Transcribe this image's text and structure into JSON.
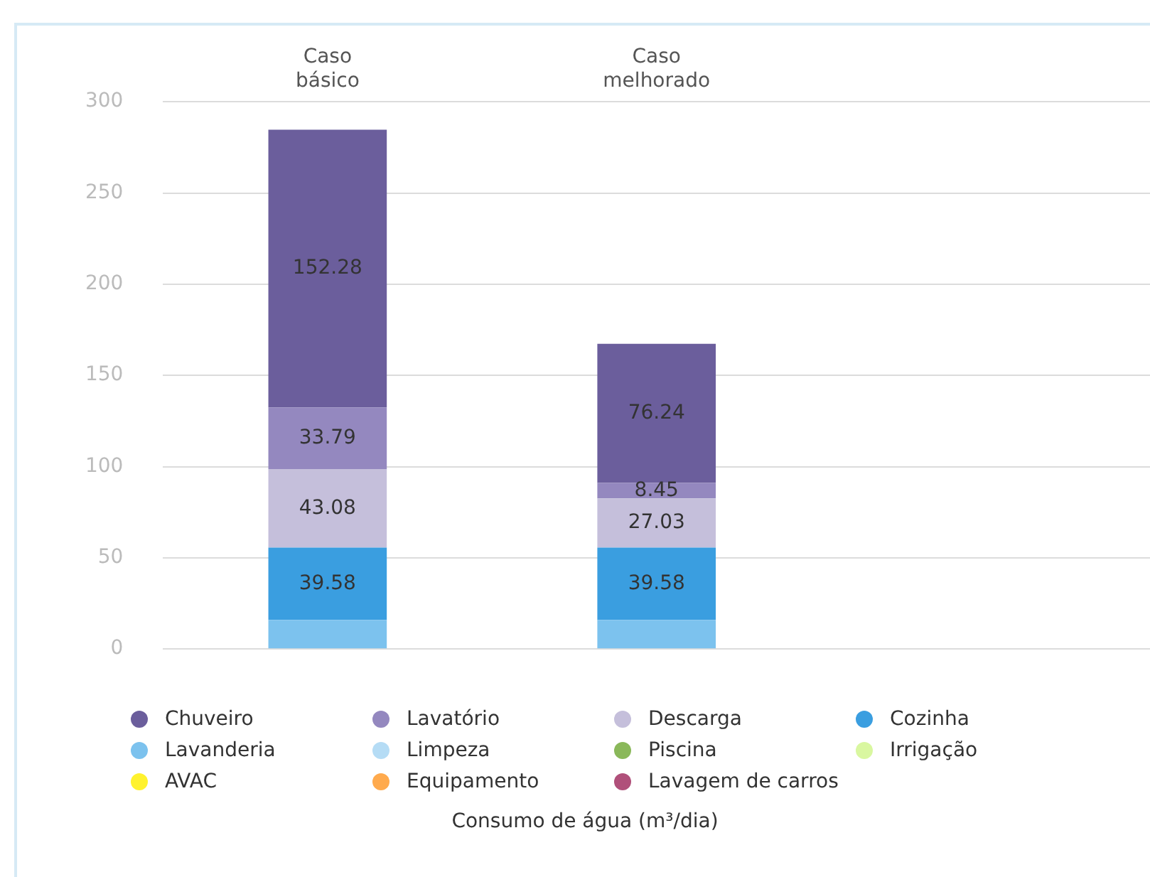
{
  "chart_data": {
    "type": "bar",
    "stacked": true,
    "annotations": [
      "Consumo de água (m³/dia)"
    ],
    "categories": [
      "Caso básico",
      "Caso melhorado",
      null
    ],
    "series": [
      {
        "name": "Lavagem de carros",
        "color": "#b0507a",
        "values": [
          0,
          0,
          null
        ],
        "value_labels": [
          null,
          null,
          null
        ]
      },
      {
        "name": "Equipamento",
        "color": "#ffaa4d",
        "values": [
          0,
          0,
          null
        ],
        "value_labels": [
          null,
          null,
          null
        ]
      },
      {
        "name": "AVAC",
        "color": "#fff22e",
        "values": [
          0,
          0,
          null
        ],
        "value_labels": [
          null,
          null,
          null
        ]
      },
      {
        "name": "Irrigação",
        "color": "#d9f7a0",
        "values": [
          0,
          0,
          null
        ],
        "value_labels": [
          null,
          null,
          null
        ]
      },
      {
        "name": "Piscina",
        "color": "#8ab85a",
        "values": [
          0,
          0,
          null
        ],
        "value_labels": [
          null,
          null,
          null
        ]
      },
      {
        "name": "Limpeza",
        "color": "#b5dcf5",
        "values": [
          0,
          0,
          null
        ],
        "value_labels": [
          null,
          null,
          null
        ]
      },
      {
        "name": "Lavanderia",
        "color": "#7cc2ee",
        "values": [
          16,
          16,
          null
        ],
        "value_labels": [
          null,
          null,
          null
        ]
      },
      {
        "name": "Cozinha",
        "color": "#3a9ee0",
        "values": [
          39.58,
          39.58,
          null
        ],
        "value_labels": [
          "39.58",
          "39.58",
          null
        ]
      },
      {
        "name": "Descarga",
        "color": "#c5bfdb",
        "values": [
          43.08,
          27.03,
          null
        ],
        "value_labels": [
          "43.08",
          "27.03",
          null
        ]
      },
      {
        "name": "Lavatório",
        "color": "#9488bf",
        "values": [
          33.79,
          8.45,
          null
        ],
        "value_labels": [
          "33.79",
          "8.45",
          null
        ]
      },
      {
        "name": "Chuveiro",
        "color": "#6b5e9c",
        "values": [
          152.28,
          76.24,
          null
        ],
        "value_labels": [
          "152.28",
          "76.24",
          null
        ]
      }
    ],
    "ylim": [
      0,
      300
    ],
    "yticks": [
      0,
      50,
      100,
      150,
      200,
      250,
      300
    ],
    "grid": "y",
    "legend": "bottom"
  }
}
